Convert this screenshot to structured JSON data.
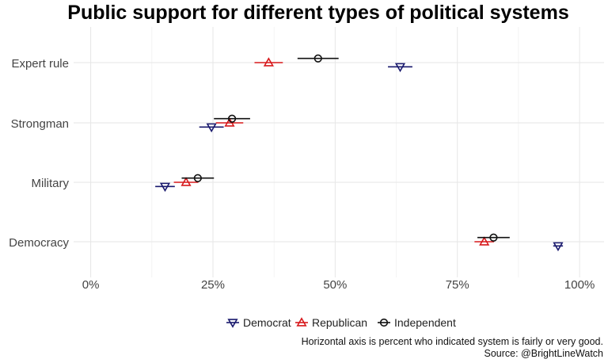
{
  "chart_data": {
    "type": "dot-errorbar",
    "title": "Public support for different types of political systems",
    "xlabel": "",
    "ylabel": "",
    "xlim": [
      -0.035,
      1.05
    ],
    "xticks": [
      0,
      0.25,
      0.5,
      0.75,
      1.0
    ],
    "xtick_labels": [
      "0%",
      "25%",
      "50%",
      "75%",
      "100%"
    ],
    "grid": true,
    "categories": [
      "Expert rule",
      "Strongman",
      "Military",
      "Democracy"
    ],
    "series": [
      {
        "name": "Democrat",
        "color": "#1a1a6e",
        "marker": "triangle-down",
        "offset": -0.07,
        "points": [
          {
            "category": "Expert rule",
            "value": 0.633,
            "low": 0.608,
            "high": 0.658
          },
          {
            "category": "Strongman",
            "value": 0.247,
            "low": 0.222,
            "high": 0.272
          },
          {
            "category": "Military",
            "value": 0.152,
            "low": 0.132,
            "high": 0.172
          },
          {
            "category": "Democracy",
            "value": 0.956,
            "low": 0.946,
            "high": 0.966
          }
        ]
      },
      {
        "name": "Republican",
        "color": "#d7191c",
        "marker": "triangle-up",
        "offset": 0.0,
        "points": [
          {
            "category": "Expert rule",
            "value": 0.364,
            "low": 0.335,
            "high": 0.393
          },
          {
            "category": "Strongman",
            "value": 0.284,
            "low": 0.256,
            "high": 0.312
          },
          {
            "category": "Military",
            "value": 0.195,
            "low": 0.17,
            "high": 0.22
          },
          {
            "category": "Democracy",
            "value": 0.805,
            "low": 0.785,
            "high": 0.825
          }
        ]
      },
      {
        "name": "Independent",
        "color": "#111111",
        "marker": "circle",
        "offset": 0.07,
        "points": [
          {
            "category": "Expert rule",
            "value": 0.465,
            "low": 0.423,
            "high": 0.507
          },
          {
            "category": "Strongman",
            "value": 0.289,
            "low": 0.252,
            "high": 0.326
          },
          {
            "category": "Military",
            "value": 0.219,
            "low": 0.186,
            "high": 0.252
          },
          {
            "category": "Democracy",
            "value": 0.824,
            "low": 0.791,
            "high": 0.857
          }
        ]
      }
    ],
    "legend_position": "bottom",
    "caption_lines": [
      "Horizontal axis is percent who indicated system is fairly or very good.",
      "Source: @BrightLineWatch"
    ]
  }
}
